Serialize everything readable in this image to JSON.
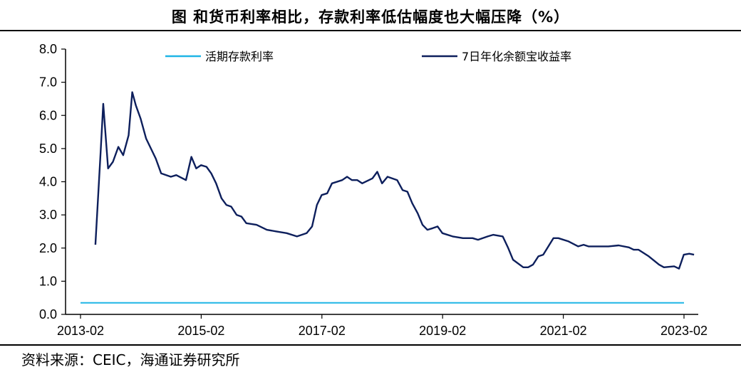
{
  "title": "图 和货币利率相比，存款利率低估幅度也大幅压降（%）",
  "source": "资料来源：CEIC，海通证券研究所",
  "chart_data": {
    "type": "line",
    "ylim": [
      0,
      8
    ],
    "yticks": [
      "0.0",
      "1.0",
      "2.0",
      "3.0",
      "4.0",
      "5.0",
      "6.0",
      "7.0",
      "8.0"
    ],
    "xlim": [
      2013.083,
      2023.25
    ],
    "xticks": [
      {
        "label": "2013-02",
        "x": 2013.083
      },
      {
        "label": "2015-02",
        "x": 2015.083
      },
      {
        "label": "2017-02",
        "x": 2017.083
      },
      {
        "label": "2019-02",
        "x": 2019.083
      },
      {
        "label": "2021-02",
        "x": 2021.083
      },
      {
        "label": "2023-02",
        "x": 2023.083
      }
    ],
    "legend_position": "top",
    "series": [
      {
        "name": "活期存款利率",
        "color": "#1fb5e6",
        "points": [
          [
            2013.083,
            0.35
          ],
          [
            2023.083,
            0.35
          ]
        ]
      },
      {
        "name": "7日年化余额宝收益率",
        "color": "#0d1f5c",
        "points": [
          [
            2013.33,
            2.1
          ],
          [
            2013.42,
            5.0
          ],
          [
            2013.46,
            6.35
          ],
          [
            2013.54,
            4.4
          ],
          [
            2013.62,
            4.6
          ],
          [
            2013.71,
            5.05
          ],
          [
            2013.79,
            4.8
          ],
          [
            2013.88,
            5.4
          ],
          [
            2013.94,
            6.7
          ],
          [
            2014.0,
            6.3
          ],
          [
            2014.08,
            5.9
          ],
          [
            2014.17,
            5.3
          ],
          [
            2014.33,
            4.7
          ],
          [
            2014.42,
            4.25
          ],
          [
            2014.58,
            4.15
          ],
          [
            2014.67,
            4.2
          ],
          [
            2014.83,
            4.05
          ],
          [
            2014.92,
            4.75
          ],
          [
            2015.0,
            4.4
          ],
          [
            2015.08,
            4.5
          ],
          [
            2015.17,
            4.45
          ],
          [
            2015.25,
            4.25
          ],
          [
            2015.33,
            3.95
          ],
          [
            2015.42,
            3.5
          ],
          [
            2015.5,
            3.3
          ],
          [
            2015.58,
            3.25
          ],
          [
            2015.67,
            3.0
          ],
          [
            2015.75,
            2.95
          ],
          [
            2015.83,
            2.75
          ],
          [
            2016.0,
            2.7
          ],
          [
            2016.17,
            2.55
          ],
          [
            2016.33,
            2.5
          ],
          [
            2016.5,
            2.45
          ],
          [
            2016.67,
            2.35
          ],
          [
            2016.83,
            2.45
          ],
          [
            2016.92,
            2.65
          ],
          [
            2017.0,
            3.3
          ],
          [
            2017.08,
            3.6
          ],
          [
            2017.17,
            3.65
          ],
          [
            2017.25,
            3.95
          ],
          [
            2017.42,
            4.05
          ],
          [
            2017.5,
            4.15
          ],
          [
            2017.58,
            4.05
          ],
          [
            2017.67,
            4.05
          ],
          [
            2017.75,
            3.95
          ],
          [
            2017.92,
            4.1
          ],
          [
            2018.0,
            4.3
          ],
          [
            2018.08,
            3.95
          ],
          [
            2018.17,
            4.15
          ],
          [
            2018.33,
            4.05
          ],
          [
            2018.42,
            3.75
          ],
          [
            2018.5,
            3.7
          ],
          [
            2018.58,
            3.35
          ],
          [
            2018.67,
            3.05
          ],
          [
            2018.75,
            2.7
          ],
          [
            2018.83,
            2.55
          ],
          [
            2018.92,
            2.6
          ],
          [
            2019.0,
            2.65
          ],
          [
            2019.08,
            2.45
          ],
          [
            2019.25,
            2.35
          ],
          [
            2019.42,
            2.3
          ],
          [
            2019.58,
            2.3
          ],
          [
            2019.67,
            2.25
          ],
          [
            2019.83,
            2.35
          ],
          [
            2019.92,
            2.4
          ],
          [
            2020.08,
            2.35
          ],
          [
            2020.17,
            2.0
          ],
          [
            2020.25,
            1.65
          ],
          [
            2020.42,
            1.42
          ],
          [
            2020.5,
            1.42
          ],
          [
            2020.58,
            1.5
          ],
          [
            2020.67,
            1.75
          ],
          [
            2020.75,
            1.8
          ],
          [
            2020.92,
            2.3
          ],
          [
            2021.0,
            2.3
          ],
          [
            2021.17,
            2.2
          ],
          [
            2021.33,
            2.05
          ],
          [
            2021.42,
            2.1
          ],
          [
            2021.5,
            2.05
          ],
          [
            2021.83,
            2.05
          ],
          [
            2022.0,
            2.08
          ],
          [
            2022.17,
            2.02
          ],
          [
            2022.25,
            1.95
          ],
          [
            2022.33,
            1.95
          ],
          [
            2022.5,
            1.75
          ],
          [
            2022.67,
            1.5
          ],
          [
            2022.75,
            1.42
          ],
          [
            2022.92,
            1.45
          ],
          [
            2023.0,
            1.38
          ],
          [
            2023.08,
            1.8
          ],
          [
            2023.17,
            1.83
          ],
          [
            2023.25,
            1.8
          ]
        ]
      }
    ]
  }
}
